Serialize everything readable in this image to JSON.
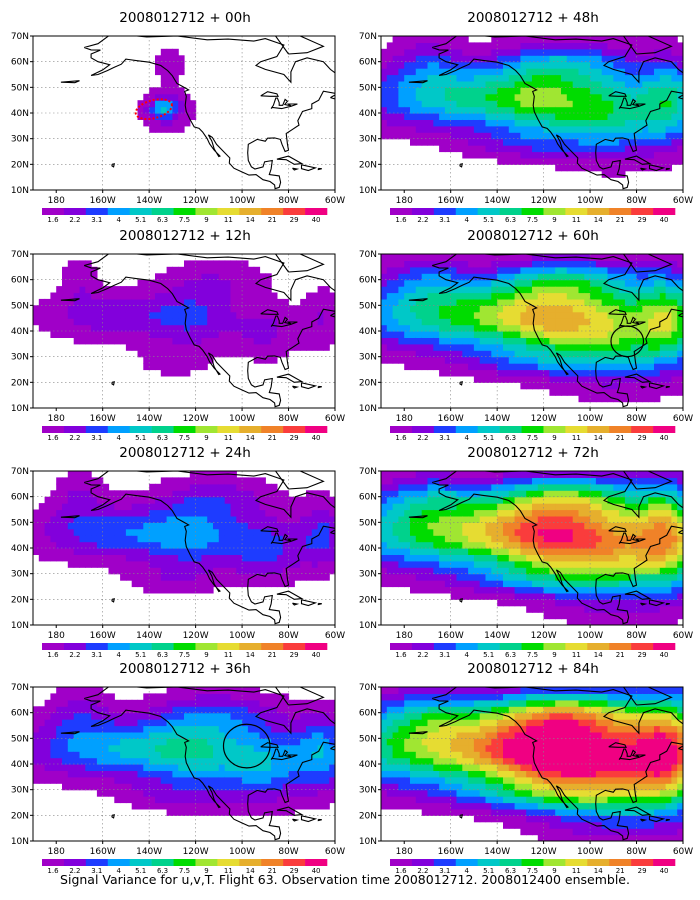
{
  "caption": "Signal Variance for u,v,T. Flight 63. Observation time 2008012712. 2008012400 ensemble.",
  "chart_data": {
    "type": "heatmap",
    "map_extent": {
      "lon": [
        -190,
        -60
      ],
      "lat": [
        10,
        70
      ]
    },
    "x_ticks": [
      "180",
      "160W",
      "140W",
      "120W",
      "100W",
      "80W",
      "60W"
    ],
    "y_ticks": [
      "10N",
      "20N",
      "30N",
      "40N",
      "50N",
      "60N",
      "70N"
    ],
    "grid": true,
    "colorbar": {
      "levels": [
        "1.6",
        "2.2",
        "3.1",
        "4",
        "5.1",
        "6.3",
        "7.5",
        "9",
        "11",
        "14",
        "21",
        "29",
        "40"
      ],
      "colors": [
        "#a000c8",
        "#8200dc",
        "#1e3cff",
        "#00a0ff",
        "#00c8c8",
        "#00d28c",
        "#00dc00",
        "#a0e632",
        "#e6dc32",
        "#e6af2d",
        "#f08228",
        "#fa3c3c",
        "#f00082"
      ]
    },
    "panels": [
      {
        "title": "2008012712 + 00h",
        "lead_hours": 0
      },
      {
        "title": "2008012712 + 12h",
        "lead_hours": 12
      },
      {
        "title": "2008012712 + 24h",
        "lead_hours": 24
      },
      {
        "title": "2008012712 + 36h",
        "lead_hours": 36
      },
      {
        "title": "2008012712 + 48h",
        "lead_hours": 48
      },
      {
        "title": "2008012712 + 60h",
        "lead_hours": 60
      },
      {
        "title": "2008012712 + 72h",
        "lead_hours": 72
      },
      {
        "title": "2008012712 + 84h",
        "lead_hours": 84
      }
    ],
    "observation_region": {
      "panel": "2008012712 + 00h",
      "lon": [
        -146,
        -130
      ],
      "lat": [
        38,
        45
      ],
      "color": "#ff0000"
    },
    "highlight_circles": [
      {
        "panel": "2008012712 + 36h",
        "center_lon": -98,
        "center_lat": 47,
        "radius_deg": 10
      },
      {
        "panel": "2008012712 + 60h",
        "center_lon": -84,
        "center_lat": 36,
        "radius_deg": 7
      }
    ]
  }
}
